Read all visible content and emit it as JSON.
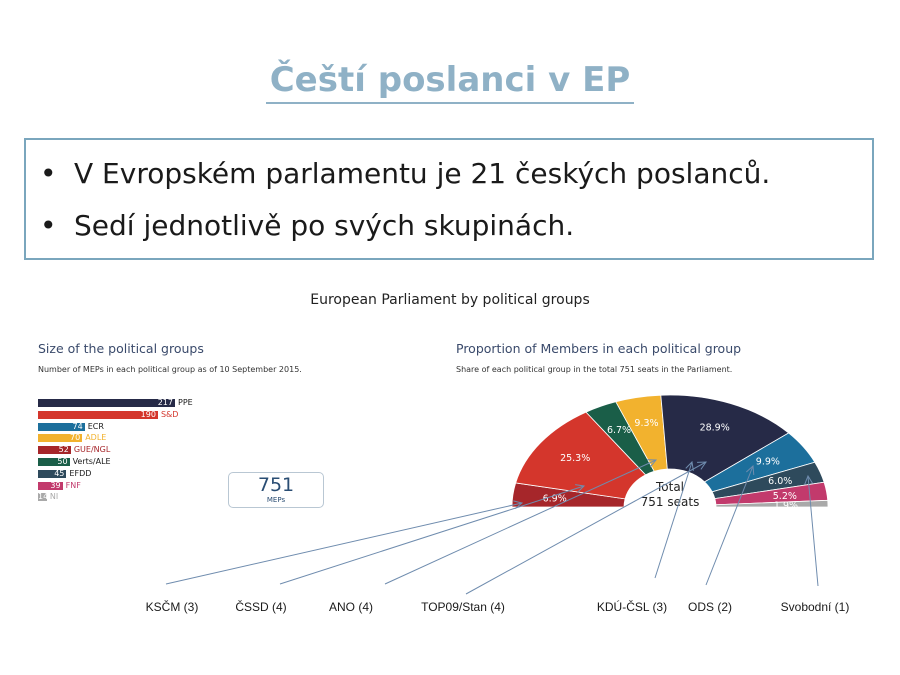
{
  "slide": {
    "title": "Čeští poslanci v EP",
    "bullets": [
      "V Evropském parlamentu je 21 českých poslanců.",
      "Sedí jednotlivě po svých skupinách."
    ],
    "bullet_char": "•"
  },
  "figure": {
    "title": "European Parliament by political groups",
    "left_heading": "Size of the political groups",
    "left_note": "Number of MEPs in each political group as of 10 September 2015.",
    "right_heading": "Proportion of Members in each political group",
    "right_note": "Share of each political group in the total 751 seats in the Parliament.",
    "total_value": "751",
    "total_unit": "MEPs",
    "center_label_1": "Total",
    "center_label_2": "751 seats"
  },
  "czech_parties": [
    {
      "label": "KSČM (3)"
    },
    {
      "label": "ČSSD (4)"
    },
    {
      "label": "ANO (4)"
    },
    {
      "label": "TOP09/Stan (4)"
    },
    {
      "label": "KDÚ-ČSL (3)"
    },
    {
      "label": "ODS (2)"
    },
    {
      "label": "Svobodní (1)"
    }
  ],
  "chart_data": [
    {
      "type": "bar",
      "orientation": "horizontal",
      "title": "Size of the political groups",
      "categories": [
        "PPE",
        "S&D",
        "ECR",
        "ADLE",
        "GUE/NGL",
        "Verts/ALE",
        "EFDD",
        "FNF",
        "NI"
      ],
      "values": [
        217,
        190,
        74,
        70,
        52,
        50,
        45,
        39,
        14
      ],
      "colors": [
        "#262a47",
        "#d4362c",
        "#1c6f9c",
        "#f2b22e",
        "#a6262a",
        "#1a5e48",
        "#2e4a5c",
        "#c23a6c",
        "#a9a9a9"
      ],
      "label_colors": [
        "#1a1a1a",
        "#d4362c",
        "#1a1a1a",
        "#f2b22e",
        "#a6262a",
        "#1a1a1a",
        "#1a1a1a",
        "#c23a6c",
        "#a9a9a9"
      ]
    },
    {
      "type": "pie",
      "subtype": "half-donut",
      "title": "Proportion of Members in each political group",
      "categories": [
        "GUE/NGL",
        "S&D",
        "Verts/ALE",
        "ADLE",
        "PPE",
        "ECR",
        "EFDD",
        "FNF",
        "NI"
      ],
      "values": [
        6.9,
        25.3,
        6.7,
        9.3,
        28.9,
        9.9,
        6.0,
        5.2,
        1.9
      ],
      "labels": [
        "6.9%",
        "25.3%",
        "6.7%",
        "9.3%",
        "28.9%",
        "9.9%",
        "6.0%",
        "5.2%",
        "1.9%"
      ],
      "colors": [
        "#a6262a",
        "#d4362c",
        "#1a5e48",
        "#f2b22e",
        "#262a47",
        "#1c6f9c",
        "#2e4a5c",
        "#c23a6c",
        "#a9a9a9"
      ]
    }
  ]
}
